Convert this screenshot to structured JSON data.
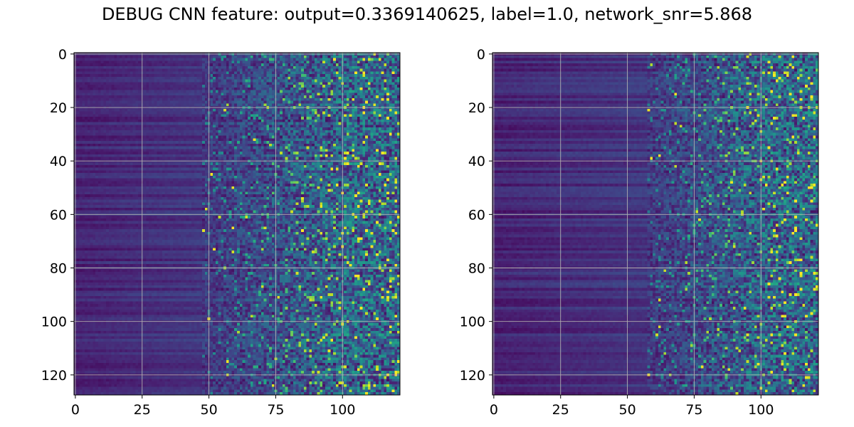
{
  "title": "DEBUG CNN feature: output=0.3369140625, label=1.0, network_snr=5.868",
  "colormap": "viridis",
  "grid": true,
  "chart_data": [
    {
      "type": "heatmap",
      "name": "",
      "x_ticks": [
        0,
        25,
        50,
        75,
        100
      ],
      "y_ticks": [
        0,
        20,
        40,
        60,
        80,
        100,
        120
      ],
      "xlim": [
        -0.5,
        121.5
      ],
      "ylim": [
        127.5,
        -0.5
      ],
      "n_rows": 128,
      "n_cols": 122,
      "grid": true,
      "colormap": "viridis",
      "description_pattern": "dark horizontal banding for x<50, noisy speckle increasing toward x>75",
      "seed": 17
    },
    {
      "type": "heatmap",
      "name": "",
      "x_ticks": [
        0,
        25,
        50,
        75,
        100
      ],
      "y_ticks": [
        0,
        20,
        40,
        60,
        80,
        100,
        120
      ],
      "xlim": [
        -0.5,
        121.5
      ],
      "ylim": [
        127.5,
        -0.5
      ],
      "n_rows": 128,
      "n_cols": 122,
      "grid": true,
      "colormap": "viridis",
      "description_pattern": "dark horizontal banding for x<60, noisy speckle increasing toward x>75",
      "seed": 53
    }
  ]
}
